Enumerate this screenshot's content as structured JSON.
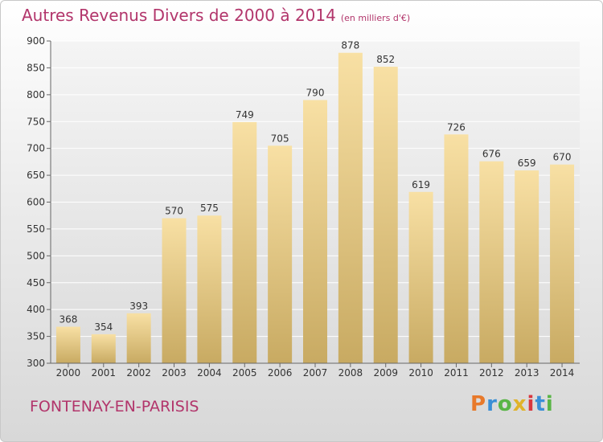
{
  "title": "Autres Revenus Divers de 2000 à 2014",
  "unit_note": "(en milliers d'€)",
  "town": "FONTENAY-EN-PARISIS",
  "logo": {
    "text": "Proxiti",
    "colors": [
      "#e8792a",
      "#3a8fd6",
      "#59b546",
      "#e0b32a",
      "#d8373f",
      "#3a8fd6",
      "#59b546"
    ]
  },
  "chart_data": {
    "type": "bar",
    "title": "Autres Revenus Divers de 2000 à 2014",
    "categories": [
      "2000",
      "2001",
      "2002",
      "2003",
      "2004",
      "2005",
      "2006",
      "2007",
      "2008",
      "2009",
      "2010",
      "2011",
      "2012",
      "2013",
      "2014"
    ],
    "values": [
      368,
      354,
      393,
      570,
      575,
      749,
      705,
      790,
      878,
      852,
      619,
      726,
      676,
      659,
      670
    ],
    "ylim": [
      300,
      900
    ],
    "yticks": [
      300,
      350,
      400,
      450,
      500,
      550,
      600,
      650,
      700,
      750,
      800,
      850,
      900
    ],
    "grid": true,
    "bar_color_top": "#f8e0a4",
    "bar_color_bottom": "#c8aa62"
  }
}
